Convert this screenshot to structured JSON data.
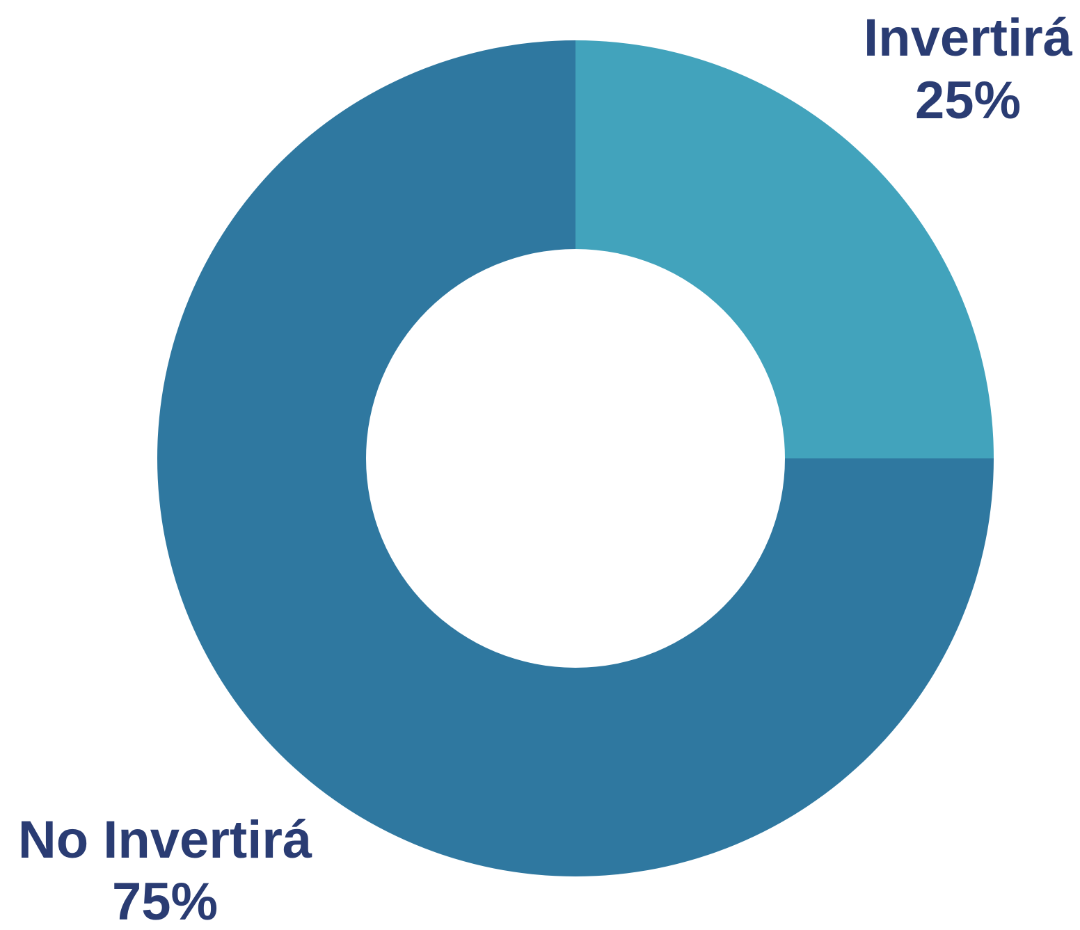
{
  "chart_data": {
    "type": "pie",
    "variant": "donut",
    "title": "",
    "categories": [
      "Invertirá",
      "No Invertirá"
    ],
    "values": [
      25,
      75
    ],
    "value_labels": [
      "25%",
      "75%"
    ],
    "colors": [
      "#42A3BC",
      "#2F78A0"
    ],
    "label_color": "#2A3C73",
    "legend": "none"
  }
}
